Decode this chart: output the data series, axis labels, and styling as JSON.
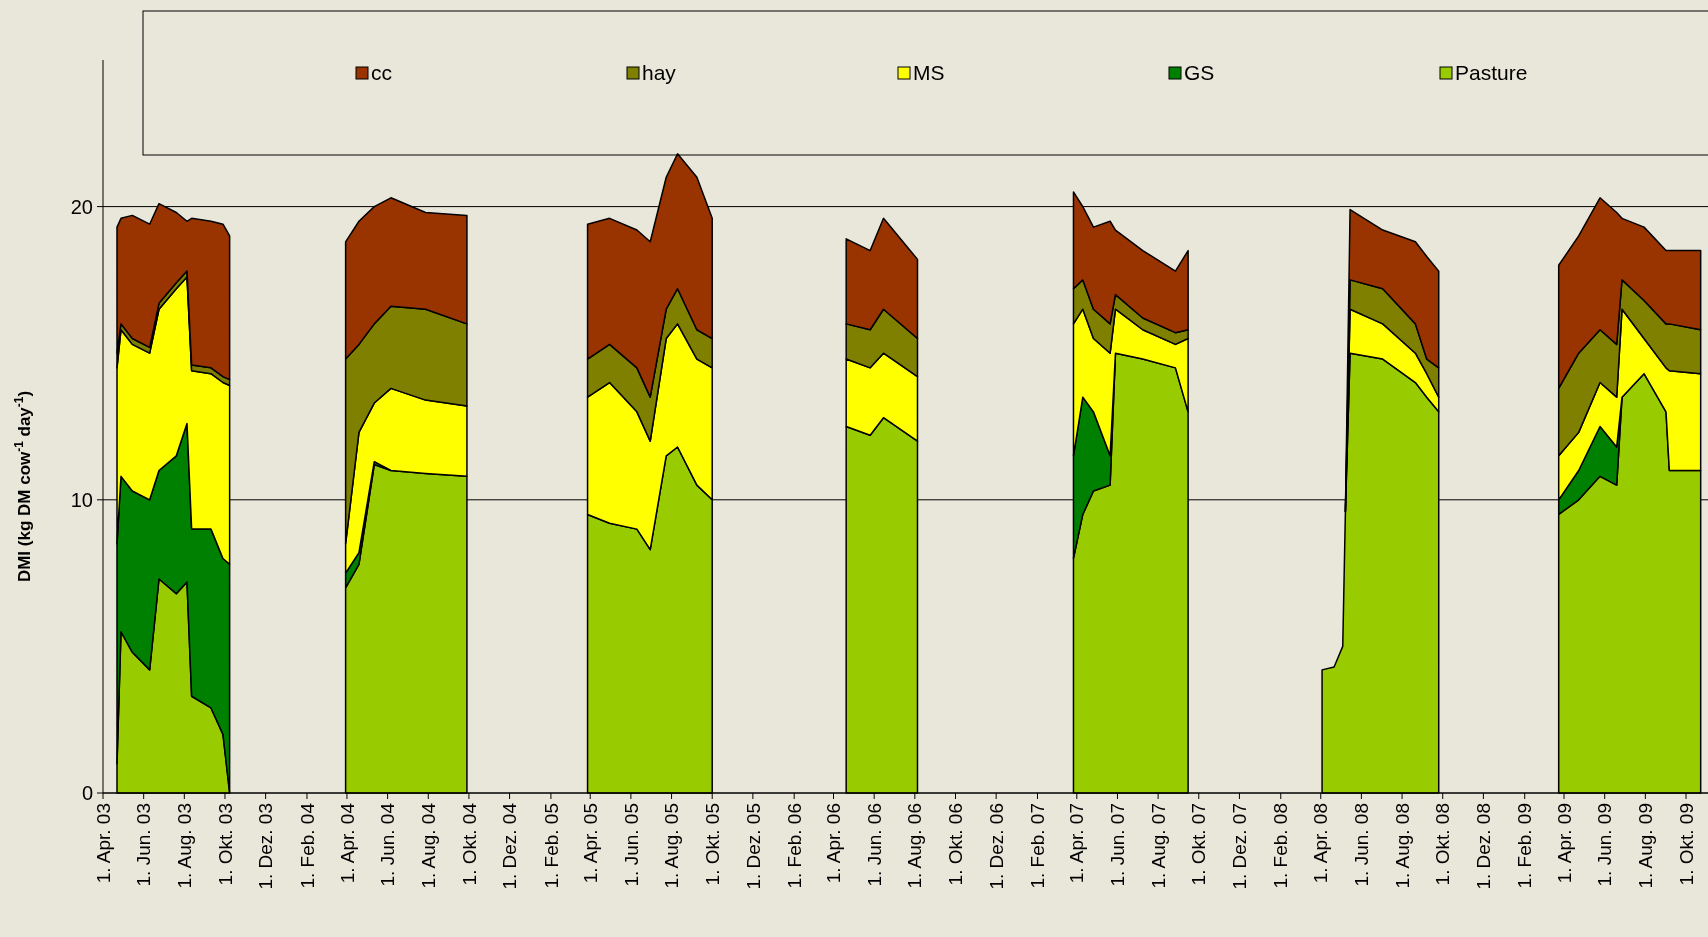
{
  "chart_data": {
    "type": "area",
    "stacked": true,
    "ylabel": "DMI  (kg DM cow$^{-1}$ day$^{-1}$)",
    "grid": "y",
    "legend": "top",
    "ylim": [
      0,
      25
    ],
    "yticks": [
      0,
      10,
      20
    ],
    "xlim": [
      "2003-04-01",
      "2009-11-03"
    ],
    "xticks": [
      {
        "value": "2003-04-01",
        "label": "1. Apr. 03"
      },
      {
        "value": "2003-06-01",
        "label": "1. Jun. 03"
      },
      {
        "value": "2003-08-01",
        "label": "1. Aug. 03"
      },
      {
        "value": "2003-10-01",
        "label": "1. Okt. 03"
      },
      {
        "value": "2003-12-01",
        "label": "1. Dez. 03"
      },
      {
        "value": "2004-02-01",
        "label": "1. Feb. 04"
      },
      {
        "value": "2004-04-01",
        "label": "1. Apr. 04"
      },
      {
        "value": "2004-06-01",
        "label": "1. Jun. 04"
      },
      {
        "value": "2004-08-01",
        "label": "1. Aug. 04"
      },
      {
        "value": "2004-10-01",
        "label": "1. Okt. 04"
      },
      {
        "value": "2004-12-01",
        "label": "1. Dez. 04"
      },
      {
        "value": "2005-02-01",
        "label": "1. Feb. 05"
      },
      {
        "value": "2005-04-01",
        "label": "1. Apr. 05"
      },
      {
        "value": "2005-06-01",
        "label": "1. Jun. 05"
      },
      {
        "value": "2005-08-01",
        "label": "1. Aug. 05"
      },
      {
        "value": "2005-10-01",
        "label": "1. Okt. 05"
      },
      {
        "value": "2005-12-01",
        "label": "1. Dez. 05"
      },
      {
        "value": "2006-02-01",
        "label": "1. Feb. 06"
      },
      {
        "value": "2006-04-01",
        "label": "1. Apr. 06"
      },
      {
        "value": "2006-06-01",
        "label": "1. Jun. 06"
      },
      {
        "value": "2006-08-01",
        "label": "1. Aug. 06"
      },
      {
        "value": "2006-10-01",
        "label": "1. Okt. 06"
      },
      {
        "value": "2006-12-01",
        "label": "1. Dez. 06"
      },
      {
        "value": "2007-02-01",
        "label": "1. Feb. 07"
      },
      {
        "value": "2007-04-01",
        "label": "1. Apr. 07"
      },
      {
        "value": "2007-06-01",
        "label": "1. Jun. 07"
      },
      {
        "value": "2007-08-01",
        "label": "1. Aug. 07"
      },
      {
        "value": "2007-10-01",
        "label": "1. Okt. 07"
      },
      {
        "value": "2007-12-01",
        "label": "1. Dez. 07"
      },
      {
        "value": "2008-02-01",
        "label": "1. Feb. 08"
      },
      {
        "value": "2008-04-01",
        "label": "1. Apr. 08"
      },
      {
        "value": "2008-06-01",
        "label": "1. Jun. 08"
      },
      {
        "value": "2008-08-01",
        "label": "1. Aug. 08"
      },
      {
        "value": "2008-10-01",
        "label": "1. Okt. 08"
      },
      {
        "value": "2008-12-01",
        "label": "1. Dez. 08"
      },
      {
        "value": "2009-02-01",
        "label": "1. Feb. 09"
      },
      {
        "value": "2009-04-01",
        "label": "1. Apr. 09"
      },
      {
        "value": "2009-06-01",
        "label": "1. Jun. 09"
      },
      {
        "value": "2009-08-01",
        "label": "1. Aug. 09"
      },
      {
        "value": "2009-10-01",
        "label": "1. Okt. 09"
      }
    ],
    "x": [
      "2003-04-22",
      "2003-04-28",
      "2003-05-15",
      "2003-06-10",
      "2003-06-24",
      "2003-07-20",
      "2003-08-05",
      "2003-08-12",
      "2003-09-10",
      "2003-09-28",
      "2003-10-08",
      "2004-01-01",
      "2004-03-30",
      "2004-04-19",
      "2004-05-12",
      "2004-06-06",
      "2004-07-28",
      "2004-09-28",
      "2005-01-01",
      "2005-03-28",
      "2005-04-30",
      "2005-06-10",
      "2005-06-30",
      "2005-07-24",
      "2005-08-10",
      "2005-09-08",
      "2005-10-01",
      "2006-01-01",
      "2006-04-20",
      "2006-05-26",
      "2006-06-15",
      "2006-08-05",
      "2006-12-01",
      "2007-03-27",
      "2007-04-10",
      "2007-04-26",
      "2007-05-21",
      "2007-05-29",
      "2007-07-09",
      "2007-08-27",
      "2007-09-15",
      "2008-01-01",
      "2008-04-03",
      "2008-04-21",
      "2008-05-04",
      "2008-05-08",
      "2008-05-15",
      "2008-07-03",
      "2008-08-21",
      "2008-09-07",
      "2008-09-25",
      "2009-01-01",
      "2009-03-24",
      "2009-04-23",
      "2009-05-25",
      "2009-06-19",
      "2009-06-27",
      "2009-07-30",
      "2009-09-01",
      "2009-09-06",
      "2009-10-23"
    ],
    "series": [
      {
        "name": "Pasture",
        "color": "#99cc00",
        "values": [
          1.0,
          5.5,
          4.8,
          4.2,
          7.3,
          6.8,
          7.2,
          3.3,
          2.9,
          2.0,
          0,
          null,
          7.0,
          7.8,
          11.2,
          11.0,
          10.9,
          10.8,
          null,
          9.5,
          9.2,
          9.0,
          8.3,
          11.5,
          11.8,
          10.5,
          10.0,
          null,
          12.5,
          12.2,
          12.8,
          12.0,
          null,
          8.0,
          9.5,
          10.3,
          10.5,
          15.0,
          14.8,
          14.5,
          13.0,
          null,
          4.2,
          4.3,
          5.0,
          9.6,
          15.0,
          14.8,
          14.0,
          13.5,
          13.0,
          null,
          9.5,
          10.0,
          10.8,
          10.5,
          13.5,
          14.3,
          13.0,
          11.0,
          11.0
        ]
      },
      {
        "name": "GS",
        "color": "#008000",
        "values": [
          7.5,
          5.3,
          5.5,
          5.8,
          3.7,
          4.7,
          5.4,
          5.7,
          6.1,
          6.0,
          7.8,
          null,
          0.5,
          0.4,
          0.1,
          0,
          null,
          null,
          null,
          null,
          null,
          null,
          null,
          null,
          null,
          null,
          null,
          null,
          null,
          null,
          null,
          null,
          null,
          3.5,
          4.0,
          2.7,
          1.0,
          0,
          null,
          null,
          null,
          null,
          null,
          null,
          null,
          null,
          null,
          null,
          null,
          null,
          null,
          null,
          0.5,
          1.0,
          1.7,
          1.3,
          0,
          null,
          null,
          null,
          null
        ]
      },
      {
        "name": "MS",
        "color": "#ffff00",
        "values": [
          6.0,
          5.0,
          5.0,
          5.0,
          5.5,
          5.7,
          5.0,
          5.4,
          5.3,
          6.0,
          6.1,
          null,
          1.0,
          4.1,
          2.0,
          2.8,
          2.5,
          2.4,
          null,
          4.0,
          4.8,
          4.0,
          3.7,
          4.0,
          4.2,
          4.3,
          4.5,
          null,
          2.3,
          2.3,
          2.2,
          2.2,
          null,
          4.5,
          3.0,
          2.5,
          3.5,
          1.5,
          1.0,
          0.8,
          2.5,
          null,
          null,
          null,
          null,
          0,
          1.5,
          1.2,
          1.0,
          0.8,
          0.5,
          null,
          1.5,
          1.3,
          1.5,
          1.7,
          3.0,
          1.2,
          1.5,
          3.4,
          3.3
        ]
      },
      {
        "name": "hay",
        "color": "#808000",
        "values": [
          0.5,
          0.2,
          0.2,
          0.2,
          0.2,
          0.2,
          0.2,
          0.2,
          0.2,
          0.2,
          0.2,
          null,
          6.3,
          3.0,
          2.7,
          2.8,
          3.1,
          2.8,
          null,
          1.3,
          1.3,
          1.5,
          1.5,
          1.0,
          1.2,
          1.0,
          1.0,
          null,
          1.2,
          1.3,
          1.5,
          1.3,
          null,
          1.2,
          1.0,
          1.0,
          1.0,
          0.5,
          0.4,
          0.4,
          0.3,
          null,
          null,
          null,
          null,
          0,
          1.0,
          1.2,
          1.0,
          0.5,
          1.0,
          null,
          2.3,
          2.7,
          1.8,
          1.8,
          1.0,
          1.3,
          1.5,
          1.6,
          1.5
        ]
      },
      {
        "name": "cc",
        "color": "#993300",
        "values": [
          4.3,
          3.6,
          4.2,
          4.2,
          3.4,
          2.4,
          1.7,
          5.0,
          5.0,
          5.2,
          4.9,
          null,
          4.0,
          4.2,
          4.0,
          3.7,
          3.3,
          3.7,
          null,
          4.6,
          4.3,
          4.7,
          5.3,
          4.5,
          4.6,
          5.2,
          4.1,
          null,
          2.9,
          2.7,
          3.1,
          2.7,
          null,
          3.3,
          2.5,
          2.8,
          3.5,
          2.2,
          2.3,
          2.1,
          2.7,
          null,
          null,
          null,
          null,
          0,
          2.4,
          2.0,
          2.8,
          3.5,
          3.3,
          null,
          4.2,
          4.0,
          4.5,
          4.5,
          2.1,
          2.5,
          2.5,
          2.5,
          2.7
        ]
      }
    ]
  }
}
